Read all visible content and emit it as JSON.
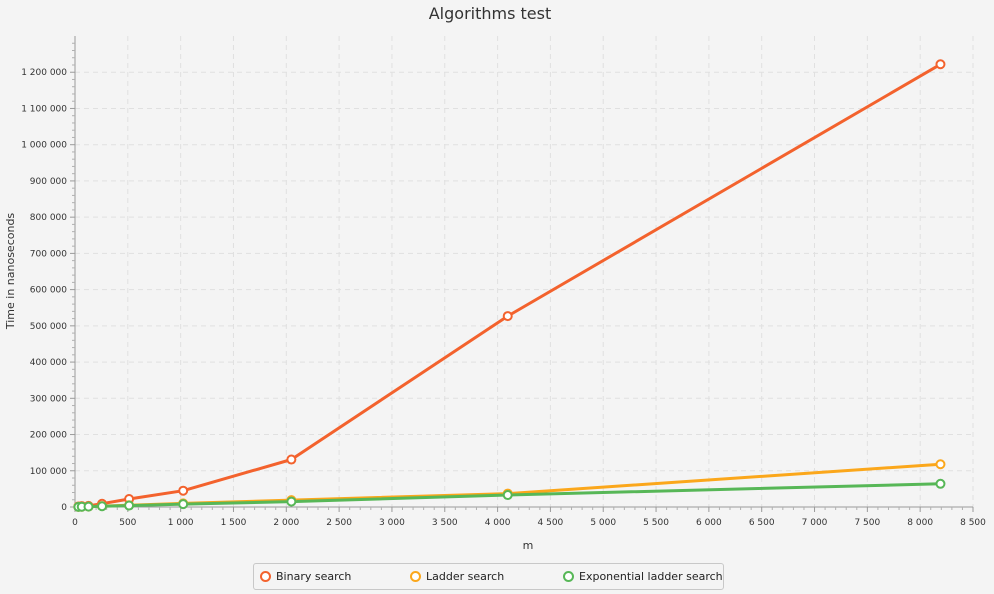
{
  "chart_data": {
    "type": "line",
    "title": "Algorithms test",
    "xlabel": "m",
    "ylabel": "Time in nanoseconds",
    "xlim": [
      0,
      8500
    ],
    "ylim": [
      0,
      1300000
    ],
    "x_ticks": [
      0,
      500,
      1000,
      1500,
      2000,
      2500,
      3000,
      3500,
      4000,
      4500,
      5000,
      5500,
      6000,
      6500,
      7000,
      7500,
      8000,
      8500
    ],
    "x_tick_labels": [
      "0",
      "500",
      "1 000",
      "1 500",
      "2 000",
      "2 500",
      "3 000",
      "3 500",
      "4 000",
      "4 500",
      "5 000",
      "5 500",
      "6 000",
      "6 500",
      "7 000",
      "7 500",
      "8 000",
      "8 500"
    ],
    "y_ticks": [
      0,
      100000,
      200000,
      300000,
      400000,
      500000,
      600000,
      700000,
      800000,
      900000,
      1000000,
      1100000,
      1200000
    ],
    "y_tick_labels": [
      "0",
      "100 000",
      "200 000",
      "300 000",
      "400 000",
      "500 000",
      "600 000",
      "700 000",
      "800 000",
      "900 000",
      "1 000 000",
      "1 100 000",
      "1 200 000"
    ],
    "grid": true,
    "legend_position": "bottom",
    "x": [
      32,
      64,
      128,
      256,
      512,
      1024,
      2048,
      4096,
      8192
    ],
    "series": [
      {
        "name": "Binary search",
        "color": "#f3622d",
        "values": [
          1500,
          2500,
          3000,
          9000,
          22000,
          45000,
          131000,
          527000,
          1222000
        ]
      },
      {
        "name": "Ladder search",
        "color": "#fba71b",
        "values": [
          500,
          800,
          1200,
          2500,
          5000,
          10000,
          19000,
          37000,
          118000
        ]
      },
      {
        "name": "Exponential ladder search",
        "color": "#57b757",
        "values": [
          400,
          700,
          1000,
          2000,
          4000,
          8000,
          15000,
          33000,
          64000
        ]
      }
    ]
  }
}
